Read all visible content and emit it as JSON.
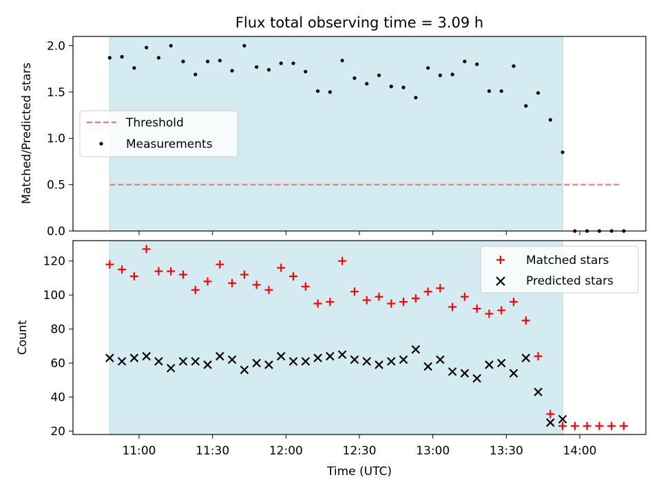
{
  "chart_data": [
    {
      "type": "scatter",
      "title": "Flux total observing time = 3.09 h",
      "xlabel": "",
      "ylabel": "Matched/Predicted stars",
      "ylim": [
        0.0,
        2.1
      ],
      "yticks": [
        "0.0",
        "0.5",
        "1.0",
        "1.5",
        "2.0"
      ],
      "ytick_values": [
        0.0,
        0.5,
        1.0,
        1.5,
        2.0
      ],
      "xlim": [
        "10:33",
        "14:27"
      ],
      "shaded_span": [
        "10:48",
        "13:53"
      ],
      "shaded_color": "#d4ebf1",
      "legend": {
        "location": "center-left",
        "entries": [
          "Threshold",
          "Measurements"
        ]
      },
      "threshold": {
        "name": "Threshold",
        "value": 0.5,
        "x_start": "10:48",
        "x_end": "14:17",
        "color": "#f07a7a",
        "style": "dashed"
      },
      "measurements": {
        "name": "Measurements",
        "color": "#000000",
        "x": [
          "10:48",
          "10:53",
          "10:58",
          "11:03",
          "11:08",
          "11:13",
          "11:18",
          "11:23",
          "11:28",
          "11:33",
          "11:38",
          "11:43",
          "11:48",
          "11:53",
          "11:58",
          "12:03",
          "12:08",
          "12:13",
          "12:18",
          "12:23",
          "12:28",
          "12:33",
          "12:38",
          "12:43",
          "12:48",
          "12:53",
          "12:58",
          "13:03",
          "13:08",
          "13:13",
          "13:18",
          "13:23",
          "13:28",
          "13:33",
          "13:38",
          "13:43",
          "13:48",
          "13:53",
          "13:58",
          "14:03",
          "14:08",
          "14:13",
          "14:18"
        ],
        "y": [
          1.87,
          1.88,
          1.76,
          1.98,
          1.87,
          2.0,
          1.83,
          1.69,
          1.83,
          1.84,
          1.73,
          2.0,
          1.77,
          1.74,
          1.81,
          1.81,
          1.72,
          1.51,
          1.5,
          1.84,
          1.65,
          1.59,
          1.68,
          1.56,
          1.55,
          1.44,
          1.76,
          1.68,
          1.69,
          1.83,
          1.8,
          1.51,
          1.51,
          1.78,
          1.35,
          1.49,
          1.2,
          0.85,
          0.0,
          0.0,
          0.0,
          0.0,
          0.0
        ]
      }
    },
    {
      "type": "scatter",
      "title": "",
      "xlabel": "Time (UTC)",
      "ylabel": "Count",
      "ylim": [
        18,
        132
      ],
      "yticks": [
        "20",
        "40",
        "60",
        "80",
        "100",
        "120"
      ],
      "ytick_values": [
        20,
        40,
        60,
        80,
        100,
        120
      ],
      "xticks": [
        "11:00",
        "11:30",
        "12:00",
        "12:30",
        "13:00",
        "13:30",
        "14:00"
      ],
      "xtick_values": [
        "11:00",
        "11:30",
        "12:00",
        "12:30",
        "13:00",
        "13:30",
        "14:00"
      ],
      "xlim": [
        "10:33",
        "14:27"
      ],
      "shaded_span": [
        "10:48",
        "13:53"
      ],
      "shaded_color": "#d4ebf1",
      "legend": {
        "location": "top-right",
        "entries": [
          "Matched stars",
          "Predicted stars"
        ]
      },
      "series": [
        {
          "name": "Matched stars",
          "marker": "plus",
          "color": "#ff0000",
          "x": [
            "10:48",
            "10:53",
            "10:58",
            "11:03",
            "11:08",
            "11:13",
            "11:18",
            "11:23",
            "11:28",
            "11:33",
            "11:38",
            "11:43",
            "11:48",
            "11:53",
            "11:58",
            "12:03",
            "12:08",
            "12:13",
            "12:18",
            "12:23",
            "12:28",
            "12:33",
            "12:38",
            "12:43",
            "12:48",
            "12:53",
            "12:58",
            "13:03",
            "13:08",
            "13:13",
            "13:18",
            "13:23",
            "13:28",
            "13:33",
            "13:38",
            "13:43",
            "13:48",
            "13:53",
            "13:58",
            "14:03",
            "14:08",
            "14:13",
            "14:18"
          ],
          "values": [
            118,
            115,
            111,
            127,
            114,
            114,
            112,
            103,
            108,
            118,
            107,
            112,
            106,
            103,
            116,
            111,
            105,
            95,
            96,
            120,
            102,
            97,
            99,
            95,
            96,
            98,
            102,
            104,
            93,
            99,
            92,
            89,
            91,
            96,
            85,
            64,
            30,
            23,
            23,
            23,
            23,
            23,
            23
          ]
        },
        {
          "name": "Predicted stars",
          "marker": "x",
          "color": "#000000",
          "x": [
            "10:48",
            "10:53",
            "10:58",
            "11:03",
            "11:08",
            "11:13",
            "11:18",
            "11:23",
            "11:28",
            "11:33",
            "11:38",
            "11:43",
            "11:48",
            "11:53",
            "11:58",
            "12:03",
            "12:08",
            "12:13",
            "12:18",
            "12:23",
            "12:28",
            "12:33",
            "12:38",
            "12:43",
            "12:48",
            "12:53",
            "12:58",
            "13:03",
            "13:08",
            "13:13",
            "13:18",
            "13:23",
            "13:28",
            "13:33",
            "13:38",
            "13:43",
            "13:48",
            "13:53"
          ],
          "values": [
            63,
            61,
            63,
            64,
            61,
            57,
            61,
            61,
            59,
            64,
            62,
            56,
            60,
            59,
            64,
            61,
            61,
            63,
            64,
            65,
            62,
            61,
            59,
            61,
            62,
            68,
            58,
            62,
            55,
            54,
            51,
            59,
            60,
            54,
            63,
            43,
            25,
            27
          ]
        }
      ]
    }
  ]
}
